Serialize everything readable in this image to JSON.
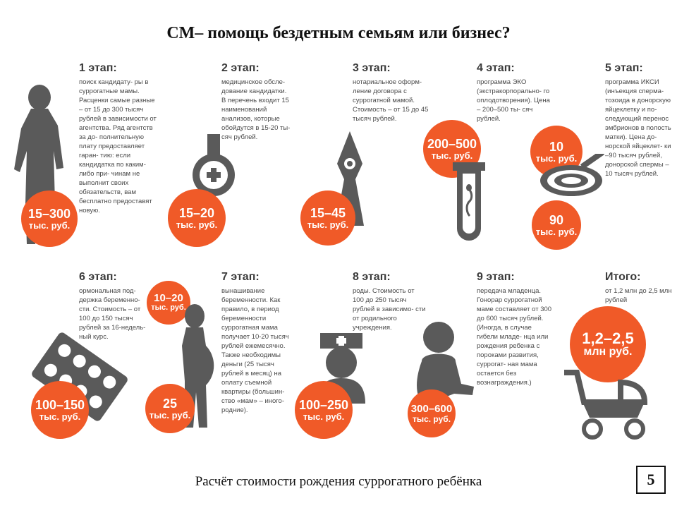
{
  "title": "СМ– помощь бездетным семьям или бизнес?",
  "stages": [
    {
      "head": "1 этап:",
      "desc": "поиск кандидату- ры в суррогатные мамы. Расценки самые разные – от 15 до 300 тысяч рублей в зависимости от агентства. Ряд агентств за до- полнительную плату предоставляет гаран- тию: если кандидатка по каким-либо при- чинам не выполнит своих обязательств, вам бесплатно предоставят новую.",
      "price_top": "15–300",
      "price_bottom": "тыс. руб."
    },
    {
      "head": "2 этап:",
      "desc": "медицинское обсле- дование кандидатки. В перечень входит 15 наименований анализов, которые обойдутся в 15-20 ты- сяч рублей.",
      "price_top": "15–20",
      "price_bottom": "тыс. руб."
    },
    {
      "head": "3 этап:",
      "desc": "нотариальное оформ- ление договора с суррогатной мамой. Стоимость – от 15 до 45 тысяч рублей.",
      "price_top": "15–45",
      "price_bottom": "тыс. руб."
    },
    {
      "head": "4 этап:",
      "desc": "программа ЭКО (экстракорпорально- го оплодотворения). Цена – 200–500 ты- сяч рублей.",
      "price_top": "200–500",
      "price_bottom": "тыс. руб."
    },
    {
      "head": "5 этап:",
      "desc": "программа ИКСИ (инъекция сперма- тозоида в донорскую яйцеклетку и по- следующий перенос эмбрионов в полость матки). Цена до- норской яйцеклет- ки –90 тысяч рублей, донорской спермы – 10 тысяч рублей.",
      "price_top": "10",
      "price_bottom": "тыс. руб.",
      "price2_top": "90",
      "price2_bottom": "тыс. руб."
    },
    {
      "head": "6 этап:",
      "desc": "ормональная под- держка беременно- сти. Стоимость – от 100 до 150 тысяч рублей за 16-недель- ный курс.",
      "price_top": "100–150",
      "price_bottom": "тыс. руб."
    },
    {
      "head": "7 этап:",
      "desc": "вынашивание беременности. Как правило, в период беременности суррогатная мама получает 10-20 тысяч рублей ежемесячно. Также необходимы деньги (25 тысяч рублей в месяц) на оплату съемной квартиры (большин- ство «мам» – иного- родние).",
      "price_top": "10–20",
      "price_bottom": "тыс. руб.",
      "price2_top": "25",
      "price2_bottom": "тыс. руб."
    },
    {
      "head": "8 этап:",
      "desc": "роды. Стоимость от 100 до 250 тысяч рублей в зависимо- сти от родильного учреждения.",
      "price_top": "100–250",
      "price_bottom": "тыс. руб."
    },
    {
      "head": "9 этап:",
      "desc": "передача младенца. Гонорар суррогатной маме составляет от 300 до 600 тысяч рублей. (Иногда, в случае гибели младе- нца или рождения ребенка с пороками развития, суррогат- ная мама остается без вознаграждения.)",
      "price_top": "300–600",
      "price_bottom": "тыс. руб."
    },
    {
      "head": "Итого:",
      "desc": "от 1,2 млн до 2,5 млн рублей",
      "price_top": "1,2–2,5",
      "price_bottom": "млн руб."
    }
  ],
  "caption": "Расчёт стоимости рождения суррогатного ребёнка",
  "page_number": "5",
  "icons": [
    "child-silhouette-icon",
    "flask-icon",
    "pen-nib-icon",
    "test-tube-icon",
    "petri-dish-icon",
    "pill-blister-icon",
    "pregnant-woman-icon",
    "nurse-icon",
    "baby-icon",
    "stroller-icon"
  ],
  "colors": {
    "accent": "#f05a28",
    "icon": "#5a5a5a",
    "text": "#3a3a3a"
  }
}
